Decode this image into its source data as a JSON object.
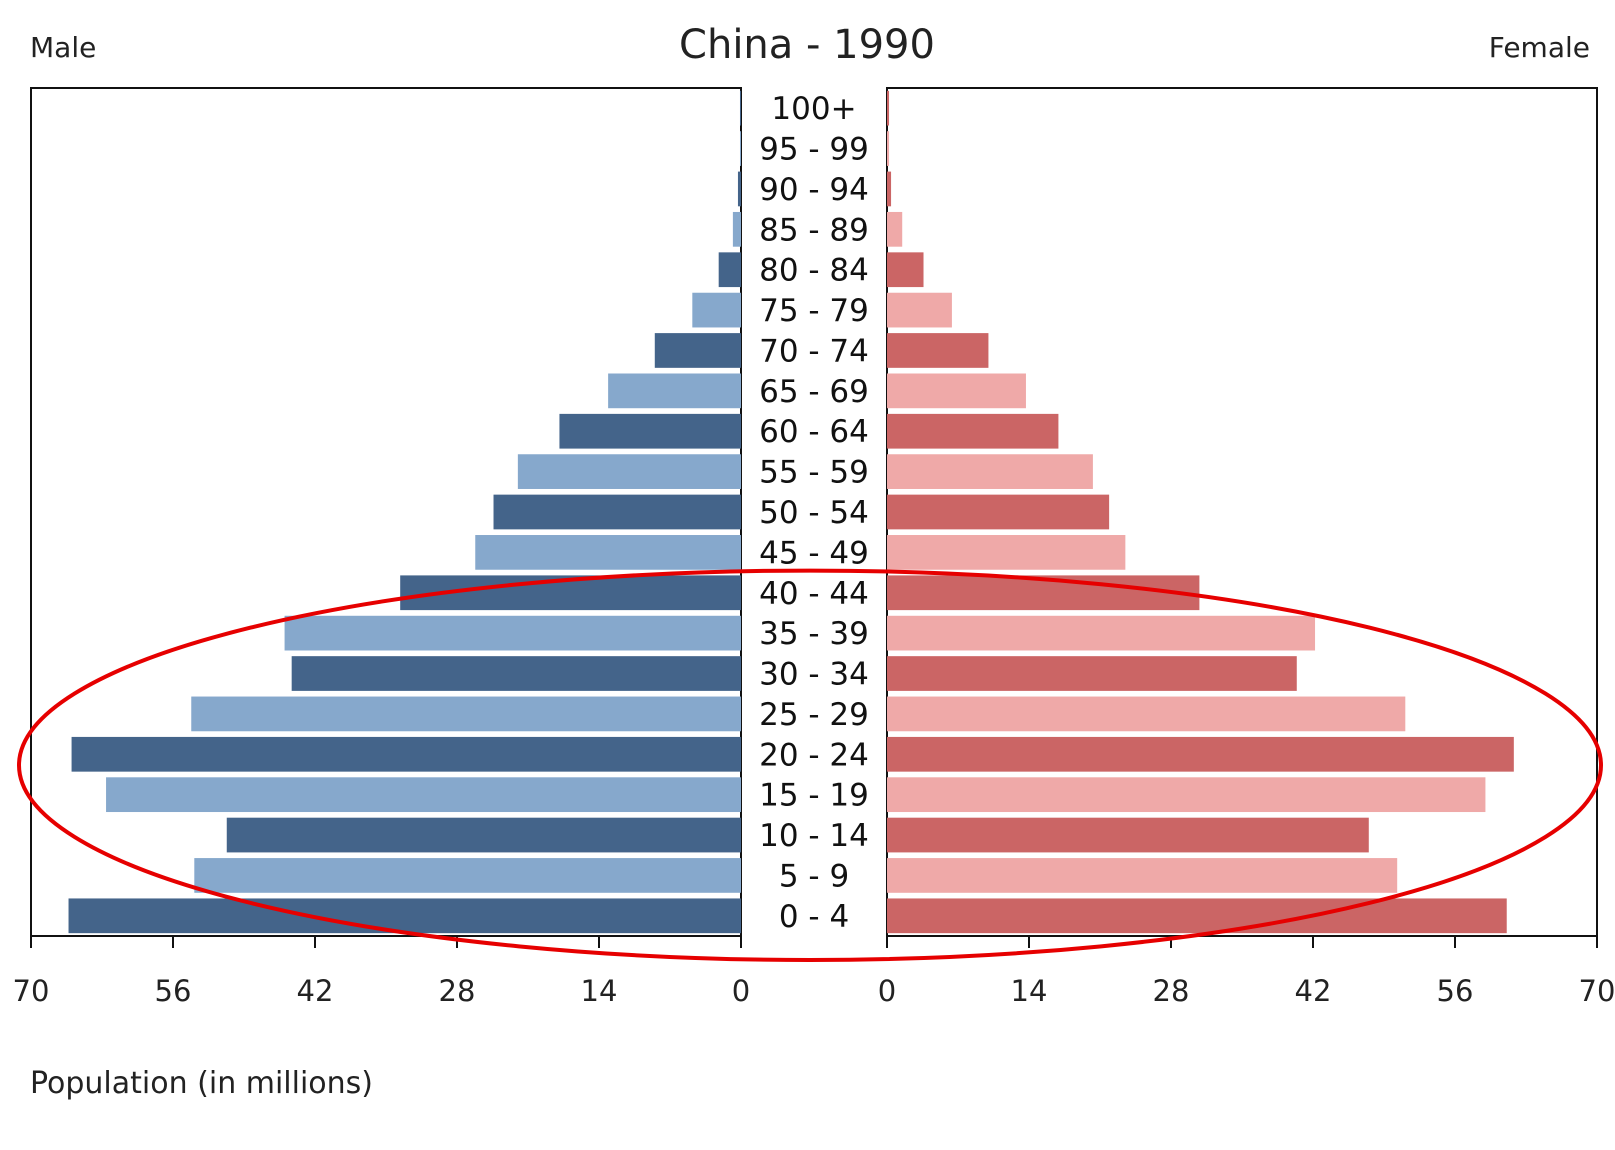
{
  "chart_data": {
    "type": "bar",
    "title": "China - 1990",
    "left_label": "Male",
    "right_label": "Female",
    "xlabel": "Population (in millions)",
    "xlim": [
      0,
      70
    ],
    "x_ticks": [
      70,
      56,
      42,
      28,
      14,
      0
    ],
    "x_ticks_right": [
      0,
      14,
      28,
      42,
      56,
      70
    ],
    "categories": [
      "100+",
      "95 - 99",
      "90 - 94",
      "85 - 89",
      "80 - 84",
      "75 - 79",
      "70 - 74",
      "65 - 69",
      "60 - 64",
      "55 - 59",
      "50 - 54",
      "45 - 49",
      "40 - 44",
      "35 - 39",
      "30 - 34",
      "25 - 29",
      "20 - 24",
      "15 - 19",
      "10 - 14",
      "5 - 9",
      "0 - 4"
    ],
    "series": [
      {
        "name": "Male",
        "side": "left",
        "values": [
          0.1,
          0.1,
          0.3,
          0.8,
          2.2,
          4.8,
          8.5,
          13.1,
          17.9,
          22.0,
          24.4,
          26.2,
          33.6,
          45.0,
          44.3,
          54.2,
          66.0,
          62.6,
          50.7,
          53.9,
          66.3
        ]
      },
      {
        "name": "Female",
        "side": "right",
        "values": [
          0.2,
          0.2,
          0.4,
          1.5,
          3.6,
          6.4,
          10.0,
          13.7,
          16.9,
          20.3,
          21.9,
          23.5,
          30.8,
          42.2,
          40.4,
          51.1,
          61.8,
          59.0,
          47.5,
          50.3,
          61.1
        ]
      }
    ],
    "colors": {
      "male_dark": "#44648a",
      "male_light": "#86a8cc",
      "female_dark": "#cb6565",
      "female_light": "#efa9a8",
      "highlight_ellipse": "#e60000"
    },
    "annotation": {
      "shape": "ellipse",
      "highlights": [
        "40 - 44",
        "35 - 39",
        "30 - 34",
        "25 - 29",
        "20 - 24",
        "15 - 19",
        "10 - 14",
        "5 - 9",
        "0 - 4"
      ]
    },
    "grid": false,
    "legend": "none"
  }
}
